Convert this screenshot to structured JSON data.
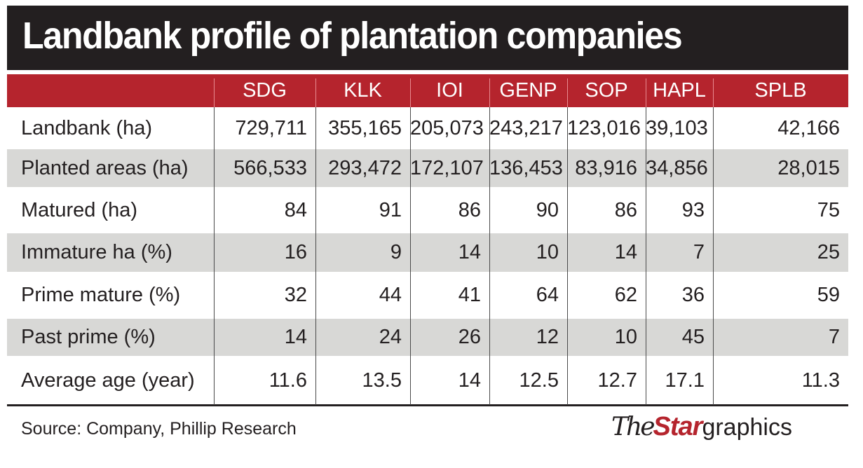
{
  "title": "Landbank profile of plantation companies",
  "colors": {
    "title_bg": "#231f20",
    "header_bg": "#b5242d",
    "stripe": "#d8d8d6",
    "text": "#231f20"
  },
  "chart_data": {
    "type": "table",
    "title": "Landbank profile of plantation companies",
    "columns": [
      "SDG",
      "KLK",
      "IOI",
      "GENP",
      "SOP",
      "HAPL",
      "SPLB"
    ],
    "rows": [
      {
        "label": "Landbank (ha)",
        "values": [
          "729,711",
          "355,165",
          "205,073",
          "243,217",
          "123,016",
          "39,103",
          "42,166"
        ]
      },
      {
        "label": "Planted areas (ha)",
        "values": [
          "566,533",
          "293,472",
          "172,107",
          "136,453",
          "83,916",
          "34,856",
          "28,015"
        ]
      },
      {
        "label": "Matured (ha)",
        "values": [
          "84",
          "91",
          "86",
          "90",
          "86",
          "93",
          "75"
        ]
      },
      {
        "label": "Immature ha (%)",
        "values": [
          "16",
          "9",
          "14",
          "10",
          "14",
          "7",
          "25"
        ]
      },
      {
        "label": "Prime mature (%)",
        "values": [
          "32",
          "44",
          "41",
          "64",
          "62",
          "36",
          "59"
        ]
      },
      {
        "label": "Past prime (%)",
        "values": [
          "14",
          "24",
          "26",
          "12",
          "10",
          "45",
          "7"
        ]
      },
      {
        "label": "Average age (year)",
        "values": [
          "11.6",
          "13.5",
          "14",
          "12.5",
          "12.7",
          "17.1",
          "11.3"
        ]
      }
    ]
  },
  "footer": {
    "source": "Source: Company, Phillip Research",
    "logo": {
      "the": "The",
      "star": "Star",
      "graphics": "graphics"
    }
  }
}
